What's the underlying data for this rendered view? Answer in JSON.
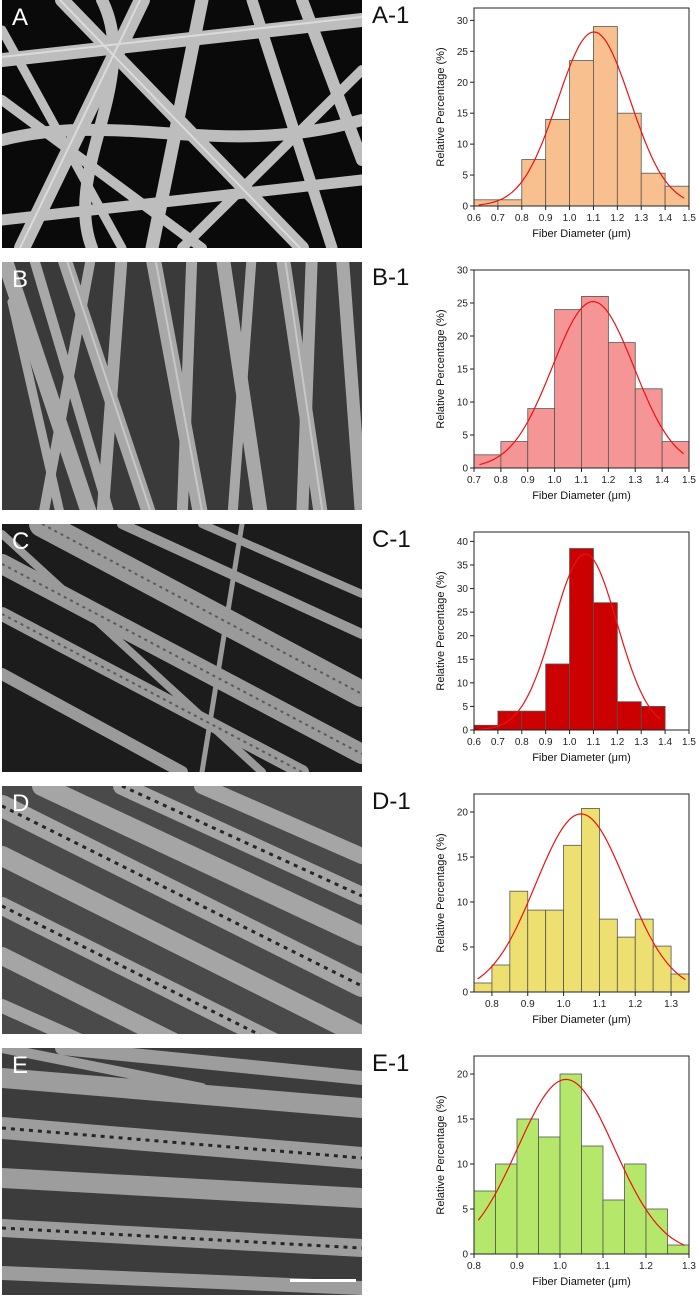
{
  "panels": [
    {
      "sem_label": "A",
      "label": "A-1",
      "bar_color": "#f8c08e",
      "chart_data": {
        "type": "bar",
        "bin_width": 0.1,
        "x": [
          0.65,
          0.75,
          0.85,
          0.95,
          1.05,
          1.15,
          1.25,
          1.35,
          1.45
        ],
        "values": [
          1,
          1,
          7.5,
          14,
          23.5,
          29,
          15,
          5.3,
          3.2
        ],
        "fit_curve": "gaussian",
        "xlim": [
          0.6,
          1.5
        ],
        "ylim": [
          0,
          32
        ],
        "xticks": [
          "0.6",
          "0.7",
          "0.8",
          "0.9",
          "1.0",
          "1.1",
          "1.2",
          "1.3",
          "1.4",
          "1.5"
        ],
        "yticks": [
          "0",
          "5",
          "10",
          "15",
          "20",
          "25",
          "30"
        ],
        "xlabel": "Fiber Diameter (μm)",
        "ylabel": "Relative Percentage (%)"
      }
    },
    {
      "sem_label": "B",
      "label": "B-1",
      "bar_color": "#f59595",
      "chart_data": {
        "type": "bar",
        "bin_width": 0.1,
        "x": [
          0.75,
          0.85,
          0.95,
          1.05,
          1.15,
          1.25,
          1.35,
          1.45
        ],
        "values": [
          2,
          4,
          9,
          24,
          26,
          19,
          12,
          4
        ],
        "fit_curve": "gaussian",
        "xlim": [
          0.7,
          1.5
        ],
        "ylim": [
          0,
          30
        ],
        "xticks": [
          "0.7",
          "0.8",
          "0.9",
          "1.0",
          "1.1",
          "1.2",
          "1.3",
          "1.4",
          "1.5"
        ],
        "yticks": [
          "0",
          "5",
          "10",
          "15",
          "20",
          "25",
          "30"
        ],
        "xlabel": "Fiber Diameter (μm)",
        "ylabel": "Relative Percentage (%)"
      }
    },
    {
      "sem_label": "C",
      "label": "C-1",
      "bar_color": "#cc0000",
      "chart_data": {
        "type": "bar",
        "bin_width": 0.1,
        "x": [
          0.65,
          0.75,
          0.85,
          0.95,
          1.05,
          1.15,
          1.25,
          1.35
        ],
        "values": [
          1,
          4,
          4,
          14,
          38.5,
          27,
          6,
          5
        ],
        "fit_curve": "gaussian",
        "xlim": [
          0.6,
          1.5
        ],
        "ylim": [
          0,
          42
        ],
        "xticks": [
          "0.6",
          "0.7",
          "0.8",
          "0.9",
          "1.0",
          "1.1",
          "1.2",
          "1.3",
          "1.4",
          "1.5"
        ],
        "yticks": [
          "0",
          "5",
          "10",
          "15",
          "20",
          "25",
          "30",
          "35",
          "40"
        ],
        "xlabel": "Fiber Diameter (μm)",
        "ylabel": "Relative Percentage (%)"
      }
    },
    {
      "sem_label": "D",
      "label": "D-1",
      "bar_color": "#eee070",
      "chart_data": {
        "type": "bar",
        "bin_width": 0.05,
        "x": [
          0.775,
          0.825,
          0.875,
          0.925,
          0.975,
          1.025,
          1.075,
          1.125,
          1.175,
          1.225,
          1.275,
          1.325
        ],
        "values": [
          1,
          3,
          11.2,
          9.1,
          9.1,
          16.3,
          20.4,
          8.1,
          6.1,
          8.1,
          5.1,
          2
        ],
        "fit_curve": "gaussian",
        "xlim": [
          0.75,
          1.35
        ],
        "ylim": [
          0,
          22
        ],
        "xticks": [
          "0.8",
          "0.9",
          "1.0",
          "1.1",
          "1.2",
          "1.3"
        ],
        "yticks": [
          "0",
          "5",
          "10",
          "15",
          "20"
        ],
        "xlabel": "Fiber Diameter (μm)",
        "ylabel": "Relative Percentage (%)"
      }
    },
    {
      "sem_label": "E",
      "label": "E-1",
      "bar_color": "#b5e86a",
      "chart_data": {
        "type": "bar",
        "bin_width": 0.05,
        "x": [
          0.825,
          0.875,
          0.925,
          0.975,
          1.025,
          1.075,
          1.125,
          1.175,
          1.225,
          1.275
        ],
        "values": [
          7,
          10,
          15,
          13,
          20,
          12,
          6,
          10,
          5,
          1
        ],
        "fit_curve": "gaussian",
        "xlim": [
          0.8,
          1.3
        ],
        "ylim": [
          0,
          22
        ],
        "xticks": [
          "0.8",
          "0.9",
          "1.0",
          "1.1",
          "1.2",
          "1.3"
        ],
        "yticks": [
          "0",
          "5",
          "10",
          "15",
          "20"
        ],
        "xlabel": "Fiber Diameter (μm)",
        "ylabel": "Relative Percentage (%)"
      }
    }
  ]
}
